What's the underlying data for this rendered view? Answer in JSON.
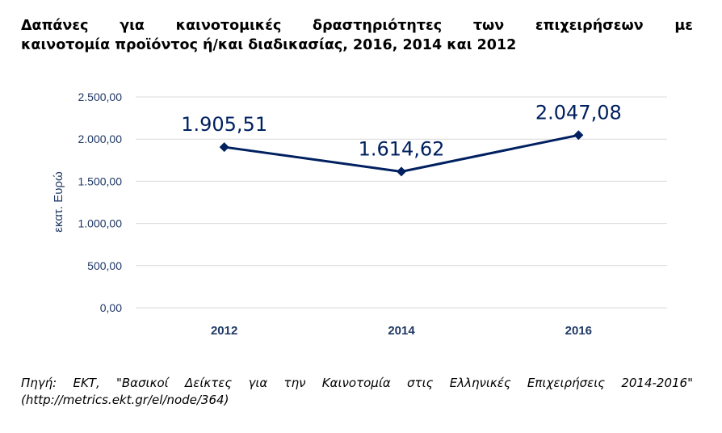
{
  "chart_data": {
    "type": "line",
    "title_line1": "Δαπάνες για καινοτομικές δραστηριότητες των επιχειρήσεων με",
    "title_line2": "καινοτομία προϊόντος ή/και διαδικασίας, 2016, 2014 και 2012",
    "categories": [
      "2012",
      "2014",
      "2016"
    ],
    "values": [
      1905.51,
      1614.62,
      2047.08
    ],
    "data_labels": [
      "1.905,51",
      "1.614,62",
      "2.047,08"
    ],
    "ylabel": "εκατ. Ευρώ",
    "xlabel": "",
    "ylim": [
      0,
      2500
    ],
    "yticks": [
      0,
      500,
      1000,
      1500,
      2000,
      2500
    ],
    "ytick_labels": [
      "0,00",
      "500,00",
      "1.000,00",
      "1.500,00",
      "2.000,00",
      "2.500,00"
    ],
    "grid": true,
    "series_color": "#002060",
    "text_color": "#1F3864"
  },
  "source_line1": "Πηγή: ΕΚΤ, \"Βασικοί Δείκτες για την Καινοτομία στις Ελληνικές Επιχειρήσεις 2014-2016\"",
  "source_line2": "(http://metrics.ekt.gr/el/node/364)"
}
